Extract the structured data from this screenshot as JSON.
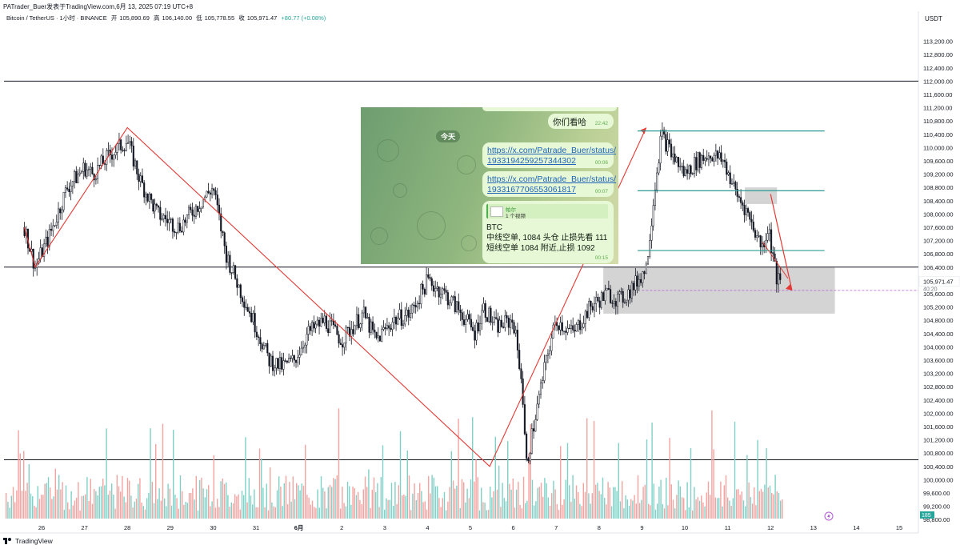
{
  "header": {
    "publisher_line": "PATrader_Buer发表于TradingView.com,6月 13, 2025 07:19 UTC+8",
    "symbol": "Bitcoin / TetherUS · 1小时 · BINANCE",
    "open_label": "开",
    "open": "105,890.69",
    "high_label": "高",
    "high": "106,140.00",
    "low_label": "低",
    "low": "105,778.55",
    "close_label": "收",
    "close": "105,971.47",
    "change": "+80.77 (+0.08%)"
  },
  "footer": {
    "brand": "TradingView"
  },
  "colors": {
    "up": "#26a69a",
    "down": "#ef5350",
    "candle": "#131722",
    "zigzag": "#e53935",
    "box": "#cccccc",
    "level_line": "#2e9c95",
    "price_tag": "#26a69a"
  },
  "chart_data": {
    "type": "candlestick",
    "currency": "USDT",
    "ylim": [
      98400,
      113600
    ],
    "y_ticks": [
      "113,200.00",
      "112,800.00",
      "112,400.00",
      "112,000.00",
      "111,600.00",
      "111,200.00",
      "110,800.00",
      "110,400.00",
      "110,000.00",
      "109,600.00",
      "109,200.00",
      "108,800.00",
      "108,400.00",
      "108,000.00",
      "107,600.00",
      "107,200.00",
      "106,800.00",
      "106,400.00",
      "106,000.00",
      "105,600.00",
      "105,200.00",
      "104,800.00",
      "104,400.00",
      "104,000.00",
      "103,600.00",
      "103,200.00",
      "102,800.00",
      "102,400.00",
      "102,000.00",
      "101,600.00",
      "101,200.00",
      "100,800.00",
      "100,400.00",
      "100,000.00",
      "99,600.00",
      "99,200.00",
      "98,800.00"
    ],
    "x_ticks": [
      "26",
      "27",
      "28",
      "29",
      "30",
      "31",
      "6月",
      "2",
      "3",
      "4",
      "5",
      "6",
      "7",
      "8",
      "9",
      "10",
      "11",
      "12",
      "13",
      "14",
      "15"
    ],
    "last_price": "105,971.47",
    "countdown": "40:20",
    "volume_last": "185",
    "price_path": [
      [
        25.6,
        107600
      ],
      [
        25.85,
        106400
      ],
      [
        26.2,
        107400
      ],
      [
        26.6,
        108800
      ],
      [
        27.0,
        109400
      ],
      [
        27.2,
        109200
      ],
      [
        27.6,
        109800
      ],
      [
        28.0,
        110200
      ],
      [
        28.3,
        109000
      ],
      [
        28.7,
        108000
      ],
      [
        29.2,
        107600
      ],
      [
        29.6,
        108200
      ],
      [
        30.0,
        108800
      ],
      [
        30.3,
        106800
      ],
      [
        30.6,
        105800
      ],
      [
        31.0,
        104600
      ],
      [
        31.3,
        103600
      ],
      [
        31.6,
        103400
      ],
      [
        31.9,
        103600
      ],
      [
        32.2,
        104400
      ],
      [
        32.6,
        104800
      ],
      [
        33.0,
        104200
      ],
      [
        33.5,
        105000
      ],
      [
        33.8,
        104200
      ],
      [
        34.2,
        104800
      ],
      [
        34.6,
        105000
      ],
      [
        35.0,
        106000
      ],
      [
        35.4,
        105600
      ],
      [
        35.8,
        105000
      ],
      [
        36.1,
        104400
      ],
      [
        36.3,
        105200
      ],
      [
        36.6,
        104600
      ],
      [
        37.0,
        104800
      ],
      [
        37.2,
        103000
      ],
      [
        37.3,
        100400
      ],
      [
        37.5,
        101800
      ],
      [
        37.8,
        103800
      ],
      [
        38.0,
        104800
      ],
      [
        38.4,
        104400
      ],
      [
        38.8,
        105200
      ],
      [
        39.2,
        105600
      ],
      [
        39.5,
        105400
      ],
      [
        39.8,
        105800
      ],
      [
        40.1,
        106400
      ],
      [
        40.3,
        108800
      ],
      [
        40.45,
        110400
      ],
      [
        40.7,
        109800
      ],
      [
        41.0,
        109200
      ],
      [
        41.3,
        109600
      ],
      [
        41.6,
        109800
      ],
      [
        41.9,
        109600
      ],
      [
        42.2,
        108600
      ],
      [
        42.4,
        108200
      ],
      [
        42.6,
        107600
      ],
      [
        42.8,
        107000
      ],
      [
        42.95,
        107600
      ],
      [
        43.05,
        106800
      ],
      [
        43.15,
        106000
      ],
      [
        43.25,
        105900
      ]
    ],
    "horizontal_lines": [
      112000,
      106400,
      100600
    ],
    "zigzag": [
      [
        25.6,
        107600
      ],
      [
        25.85,
        106400
      ],
      [
        28.0,
        110600
      ],
      [
        36.45,
        100400
      ],
      [
        40.1,
        110600
      ]
    ],
    "zones": [
      {
        "x0": 39.1,
        "x1": 44.5,
        "y0": 105000,
        "y1": 106400
      },
      {
        "x0": 42.4,
        "x1": 43.15,
        "y0": 108300,
        "y1": 108800
      }
    ],
    "level_lines": [
      {
        "x0": 39.9,
        "x1": 42.3,
        "y": 110500
      },
      {
        "x0": 39.9,
        "x1": 42.3,
        "y": 108700
      },
      {
        "x0": 39.9,
        "x1": 42.3,
        "y": 106900
      }
    ],
    "target_arrow": [
      [
        43.0,
        108600
      ],
      [
        43.5,
        105700
      ]
    ],
    "dashed_line": {
      "x0": 40.0,
      "x1": 44.5,
      "y": 105700
    }
  },
  "overlay": {
    "today": "今天",
    "msg1": "你们看哈",
    "msg1_time": "22:42",
    "msg2_line1": "https://x.com/Patrade_Buer/status/",
    "msg2_line2": "1933194259257344302",
    "msg2_time": "00:06",
    "msg3_line1": "https://x.com/Patrade_Buer/status/",
    "msg3_line2": "1933167706553061817",
    "msg3_time": "00:07",
    "reply_name": "帕尔",
    "reply_sub": "1 个视频",
    "msg4_title": "BTC",
    "msg4_line1": "中线空单, 1084 头仓 止损先看 111",
    "msg4_line2": "短线空单 1084 附近,止损 1092",
    "msg4_time": "00:15"
  }
}
